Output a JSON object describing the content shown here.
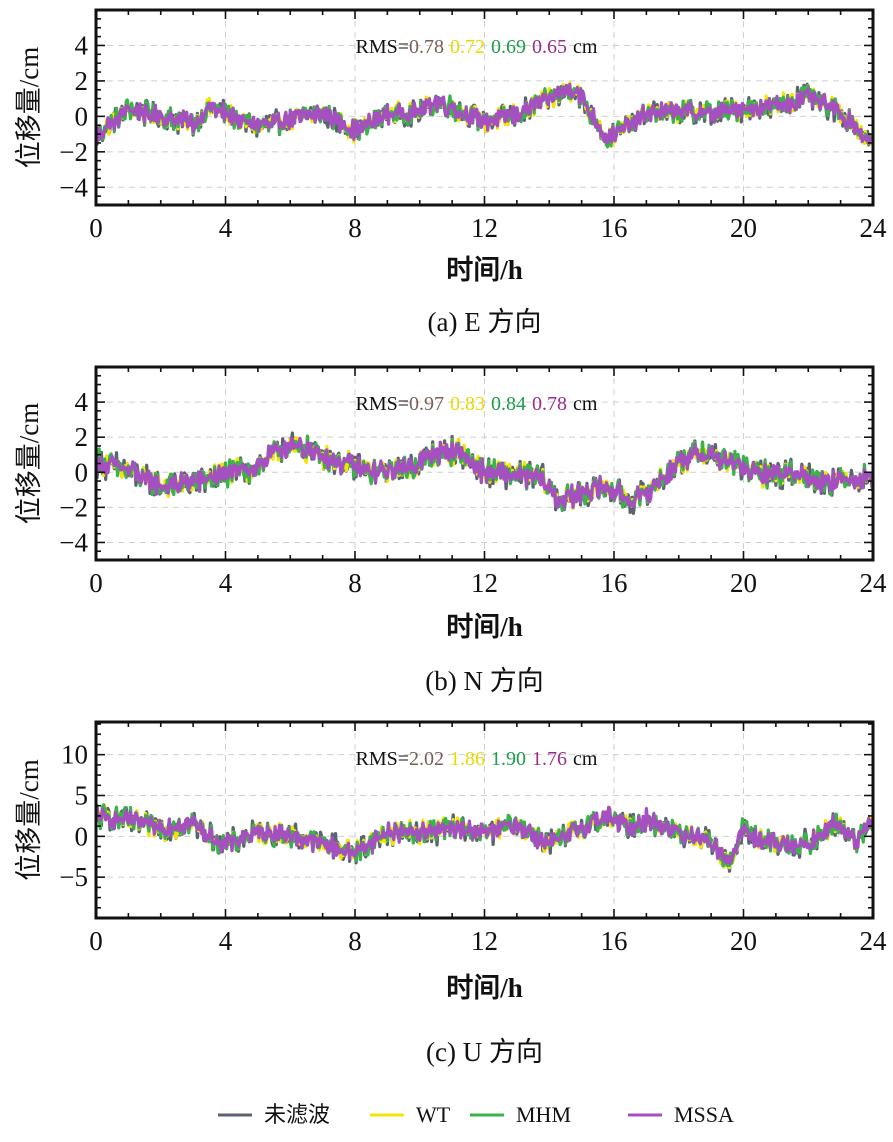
{
  "chart_data": [
    {
      "type": "line",
      "panel_id": "a",
      "caption": "(a) E 方向",
      "xlabel": "时间/h",
      "ylabel": "位移量/cm",
      "xlim": [
        0,
        24
      ],
      "ylim": [
        -5,
        6
      ],
      "xticks": [
        0,
        4,
        8,
        12,
        16,
        20,
        24
      ],
      "yticks": [
        -4,
        -2,
        0,
        2,
        4
      ],
      "grid": true,
      "rms_prefix": "RMS=",
      "rms_unit": "cm",
      "rms": [
        0.78,
        0.72,
        0.69,
        0.65
      ],
      "rms_labels": [
        "0.78",
        "0.72",
        "0.69",
        "0.65"
      ],
      "noise_amplitude": 0.6,
      "trend_x": [
        0,
        0.3,
        1,
        2,
        3,
        3.5,
        4,
        5,
        6,
        7,
        8,
        9,
        10,
        10.5,
        11,
        12,
        13,
        14,
        14.8,
        15.2,
        15.8,
        17,
        18,
        19,
        20,
        21,
        22,
        23,
        24
      ],
      "trend_y": [
        -1.2,
        -0.6,
        0.4,
        0,
        -0.4,
        0.5,
        0.2,
        -0.6,
        -0.2,
        0.2,
        -0.8,
        0.1,
        0.3,
        0.8,
        0.5,
        -0.3,
        0.1,
        1.0,
        1.6,
        0.4,
        -1.3,
        0.2,
        0.3,
        0.2,
        0.4,
        0.6,
        1.1,
        0.2,
        -1.6
      ]
    },
    {
      "type": "line",
      "panel_id": "b",
      "caption": "(b) N 方向",
      "xlabel": "时间/h",
      "ylabel": "位移量/cm",
      "xlim": [
        0,
        24
      ],
      "ylim": [
        -5,
        6
      ],
      "xticks": [
        0,
        4,
        8,
        12,
        16,
        20,
        24
      ],
      "yticks": [
        -4,
        -2,
        0,
        2,
        4
      ],
      "grid": true,
      "rms_prefix": "RMS=",
      "rms_unit": "cm",
      "rms": [
        0.97,
        0.83,
        0.84,
        0.78
      ],
      "rms_labels": [
        "0.97",
        "0.83",
        "0.84",
        "0.78"
      ],
      "noise_amplitude": 0.7,
      "trend_x": [
        0,
        1,
        2,
        3,
        4,
        5,
        5.8,
        6.5,
        7.5,
        8.5,
        9.5,
        10.5,
        11.2,
        12,
        13,
        13.8,
        14.3,
        15,
        15.7,
        16.5,
        17,
        18,
        18.8,
        19.5,
        20.5,
        21.5,
        22.5,
        24
      ],
      "trend_y": [
        0.6,
        0.1,
        -0.8,
        -0.6,
        -0.1,
        0.3,
        1.5,
        1.3,
        0.6,
        0.0,
        0.2,
        1.0,
        1.2,
        0.0,
        -0.1,
        -0.4,
        -1.6,
        -1.2,
        -0.8,
        -1.6,
        -1.2,
        0.6,
        1.2,
        0.6,
        -0.1,
        0.0,
        -0.5,
        -0.3
      ]
    },
    {
      "type": "line",
      "panel_id": "c",
      "caption": "(c) U 方向",
      "xlabel": "时间/h",
      "ylabel": "位移量/cm",
      "xlim": [
        0,
        24
      ],
      "ylim": [
        -10,
        14
      ],
      "xticks": [
        0,
        4,
        8,
        12,
        16,
        20,
        24
      ],
      "yticks": [
        -5,
        0,
        5,
        10
      ],
      "grid": true,
      "rms_prefix": "RMS=",
      "rms_unit": "cm",
      "rms": [
        2.02,
        1.86,
        1.9,
        1.76
      ],
      "rms_labels": [
        "2.02",
        "1.86",
        "1.90",
        "1.76"
      ],
      "noise_amplitude": 1.4,
      "trend_x": [
        0,
        1,
        2,
        3,
        3.5,
        4,
        5,
        6,
        7,
        8,
        9,
        10,
        11,
        12,
        13,
        14,
        15,
        15.8,
        16.5,
        17,
        18,
        19,
        19.6,
        20,
        20.5,
        21,
        22,
        22.8,
        23.5,
        24
      ],
      "trend_y": [
        2.5,
        2.0,
        1.0,
        1.5,
        0.0,
        -1.0,
        0.5,
        0.2,
        -1.0,
        -2.0,
        0.5,
        0.5,
        1.0,
        0.5,
        1.5,
        -1.0,
        1.0,
        2.5,
        1.0,
        2.0,
        0.5,
        -0.5,
        -3.5,
        1.0,
        -0.5,
        -1.0,
        -1.0,
        1.5,
        -0.5,
        2.5
      ]
    }
  ],
  "series": [
    {
      "name": "未滤波",
      "color": "#5a6470",
      "rms_color": "#7b5e57",
      "spread": 1.0
    },
    {
      "name": "WT",
      "color": "#f5e400",
      "rms_color": "#e8d800",
      "spread": 0.85
    },
    {
      "name": "MHM",
      "color": "#3bb34a",
      "rms_color": "#1a9e4a",
      "spread": 0.9
    },
    {
      "name": "MSSA",
      "color": "#a64fc0",
      "rms_color": "#9b2b8e",
      "spread": 0.75
    }
  ],
  "legend": {
    "placement": "bottom",
    "items": [
      "未滤波",
      "WT",
      "MHM",
      "MSSA"
    ]
  }
}
